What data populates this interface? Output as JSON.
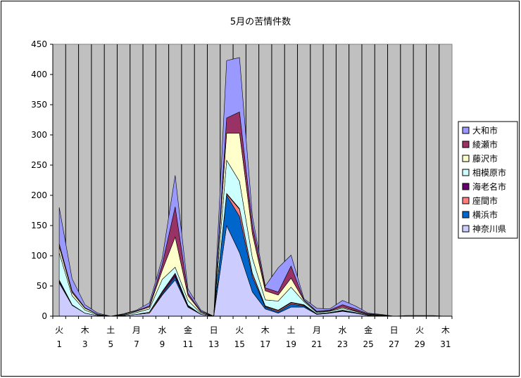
{
  "chart_data": {
    "type": "area",
    "stacked": true,
    "title": "5月の苦情件数",
    "ylim": [
      0,
      450
    ],
    "yticks": [
      0,
      50,
      100,
      150,
      200,
      250,
      300,
      350,
      400,
      450
    ],
    "x": [
      1,
      2,
      3,
      4,
      5,
      6,
      7,
      8,
      9,
      10,
      11,
      12,
      13,
      14,
      15,
      16,
      17,
      18,
      19,
      20,
      21,
      22,
      23,
      24,
      25,
      26,
      27,
      28,
      29,
      30,
      31
    ],
    "x_tick_labels": [
      {
        "day": 1,
        "weekday": "火",
        "date": "1"
      },
      {
        "day": 3,
        "weekday": "木",
        "date": "3"
      },
      {
        "day": 5,
        "weekday": "土",
        "date": "5"
      },
      {
        "day": 7,
        "weekday": "月",
        "date": "7"
      },
      {
        "day": 9,
        "weekday": "水",
        "date": "9"
      },
      {
        "day": 11,
        "weekday": "金",
        "date": "11"
      },
      {
        "day": 13,
        "weekday": "日",
        "date": "13"
      },
      {
        "day": 15,
        "weekday": "火",
        "date": "15"
      },
      {
        "day": 17,
        "weekday": "木",
        "date": "17"
      },
      {
        "day": 19,
        "weekday": "土",
        "date": "19"
      },
      {
        "day": 21,
        "weekday": "月",
        "date": "21"
      },
      {
        "day": 23,
        "weekday": "水",
        "date": "23"
      },
      {
        "day": 25,
        "weekday": "金",
        "date": "25"
      },
      {
        "day": 27,
        "weekday": "日",
        "date": "27"
      },
      {
        "day": 29,
        "weekday": "火",
        "date": "29"
      },
      {
        "day": 31,
        "weekday": "木",
        "date": "31"
      }
    ],
    "legend_position": "right",
    "grid": "vertical lines at each day",
    "plot_background": "#c0c0c0",
    "series": [
      {
        "name": "神奈川県",
        "color": "#ccccff",
        "values": [
          55,
          18,
          5,
          1,
          0,
          1,
          3,
          5,
          35,
          60,
          15,
          3,
          0,
          150,
          105,
          40,
          12,
          5,
          15,
          15,
          3,
          5,
          8,
          5,
          1,
          1,
          0,
          0,
          0,
          0,
          0
        ]
      },
      {
        "name": "横浜市",
        "color": "#0066cc",
        "values": [
          2,
          1,
          0,
          0,
          0,
          0,
          0,
          0,
          2,
          5,
          1,
          0,
          0,
          50,
          60,
          25,
          3,
          2,
          5,
          2,
          1,
          1,
          1,
          1,
          0,
          0,
          0,
          0,
          0,
          0,
          0
        ]
      },
      {
        "name": "座間市",
        "color": "#ff8080",
        "values": [
          1,
          0,
          0,
          0,
          0,
          0,
          0,
          2,
          2,
          2,
          1,
          0,
          0,
          2,
          12,
          5,
          1,
          2,
          2,
          1,
          0,
          0,
          1,
          0,
          0,
          0,
          0,
          0,
          0,
          0,
          0
        ]
      },
      {
        "name": "海老名市",
        "color": "#660066",
        "values": [
          2,
          0,
          0,
          0,
          0,
          0,
          0,
          0,
          2,
          4,
          1,
          0,
          0,
          1,
          1,
          1,
          1,
          1,
          1,
          1,
          0,
          0,
          0,
          0,
          0,
          0,
          0,
          0,
          0,
          0,
          0
        ]
      },
      {
        "name": "相模原市",
        "color": "#ccffff",
        "values": [
          45,
          15,
          5,
          1,
          0,
          1,
          3,
          5,
          20,
          10,
          8,
          2,
          0,
          55,
          45,
          25,
          10,
          15,
          25,
          5,
          2,
          2,
          3,
          2,
          1,
          0,
          0,
          0,
          0,
          0,
          0
        ]
      },
      {
        "name": "藤沢市",
        "color": "#ffffcc",
        "values": [
          10,
          5,
          3,
          1,
          0,
          1,
          2,
          3,
          15,
          50,
          8,
          2,
          0,
          45,
          80,
          40,
          15,
          10,
          15,
          2,
          1,
          1,
          2,
          1,
          1,
          1,
          0,
          0,
          0,
          0,
          0
        ]
      },
      {
        "name": "綾瀬市",
        "color": "#993366",
        "values": [
          5,
          3,
          1,
          0,
          0,
          0,
          1,
          2,
          10,
          50,
          4,
          1,
          0,
          25,
          35,
          15,
          5,
          5,
          20,
          1,
          1,
          1,
          4,
          3,
          1,
          0,
          0,
          0,
          0,
          0,
          0
        ]
      },
      {
        "name": "大和市",
        "color": "#9999ff",
        "values": [
          60,
          20,
          5,
          2,
          0,
          1,
          1,
          5,
          10,
          52,
          7,
          2,
          0,
          95,
          90,
          14,
          3,
          40,
          18,
          2,
          5,
          2,
          7,
          5,
          1,
          1,
          0,
          1,
          1,
          1,
          0
        ]
      }
    ]
  }
}
